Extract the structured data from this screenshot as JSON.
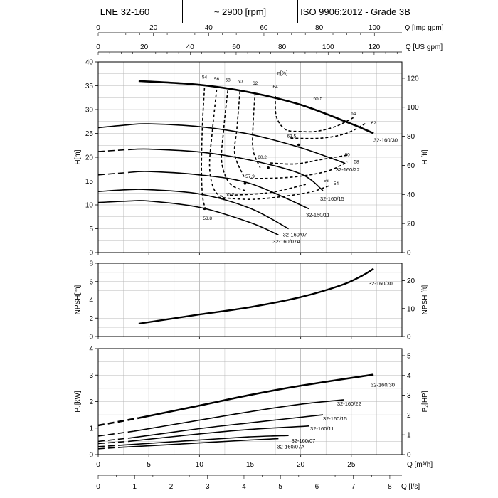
{
  "header": {
    "model": "LNE 32-160",
    "speed": "~ 2900 [rpm]",
    "standard": "ISO 9906:2012 - Grade 3B"
  },
  "chart_data": [
    {
      "type": "line",
      "name": "head",
      "title": "",
      "xlabel": "Q [m³/h]",
      "ylabel": "H[m]",
      "ylabel_right": "H [ft]",
      "xlim": [
        0,
        30
      ],
      "ylim": [
        0,
        40
      ],
      "ylim_right": [
        0,
        131.2
      ],
      "x_ticks": [
        0,
        5,
        10,
        15,
        20,
        25
      ],
      "y_ticks": [
        0,
        5,
        10,
        15,
        20,
        25,
        30,
        35,
        40
      ],
      "y_ticks_right": [
        0,
        20,
        40,
        60,
        80,
        100,
        120
      ],
      "top_axes": [
        {
          "label": "Q [Imp gpm]",
          "ticks": [
            0,
            20,
            40,
            60,
            80,
            100
          ],
          "per_m3h": 3.666
        },
        {
          "label": "Q [US gpm]",
          "ticks": [
            0,
            20,
            40,
            60,
            80,
            100,
            120
          ],
          "per_m3h": 4.403
        }
      ],
      "grid": true,
      "series": [
        {
          "name": "32-160/30",
          "x": [
            4,
            10,
            15,
            20,
            25,
            27.2
          ],
          "y": [
            36,
            35.2,
            33.6,
            31,
            27,
            25
          ],
          "dash_to": 4
        },
        {
          "name": "32-160/22",
          "x": [
            0,
            3,
            5,
            10,
            15,
            20,
            24.3
          ],
          "y": [
            26.2,
            26.8,
            27,
            26.4,
            24.8,
            22,
            18.8
          ],
          "dash_to": 3.5
        },
        {
          "name": "32-160/15",
          "x": [
            0,
            3,
            5,
            10,
            15,
            20,
            22.2
          ],
          "y": [
            21.2,
            21.6,
            21.7,
            21.1,
            19.4,
            16.5,
            13
          ],
          "dash_to": 3
        },
        {
          "name": "32-160/11",
          "x": [
            0,
            3,
            5,
            10,
            15,
            20.8
          ],
          "y": [
            16.3,
            16.8,
            17,
            16.3,
            14.5,
            9.2
          ],
          "dash_to": 3
        },
        {
          "name": "32-160/07",
          "x": [
            0,
            3,
            5,
            10,
            15,
            18.8
          ],
          "y": [
            12.8,
            13.2,
            13.2,
            12.3,
            9.3,
            5
          ],
          "dash_to": 2.5
        },
        {
          "name": "32-160/07A",
          "x": [
            0,
            3,
            5,
            10,
            15,
            17.8
          ],
          "y": [
            10.5,
            10.8,
            10.8,
            9.5,
            6.3,
            3.7
          ],
          "dash_to": 2.5
        }
      ],
      "efficiency_label": "η[%]",
      "efficiency_contours": [
        {
          "label": "54",
          "x": [
            10.5,
            10.3,
            10.2,
            10.3,
            10.6
          ],
          "y": [
            34.5,
            27,
            18,
            12,
            9
          ]
        },
        {
          "label": "56",
          "x": [
            11.7,
            11.3,
            11.0,
            11.5,
            12.5
          ],
          "y": [
            34.2,
            26,
            18,
            13,
            11.6
          ]
        },
        {
          "label": "58",
          "x": [
            12.8,
            12.4,
            12.2,
            13.0,
            14.5
          ],
          "y": [
            34.0,
            26,
            19,
            14.5,
            13
          ]
        },
        {
          "label": "60",
          "x": [
            14,
            13.7,
            13.5,
            14.5
          ],
          "y": [
            33.8,
            26,
            20.5,
            15.5
          ]
        },
        {
          "label": "62",
          "x": [
            15.5,
            15.3,
            15.3,
            16.0
          ],
          "y": [
            33.5,
            27,
            21.5,
            17.8
          ]
        },
        {
          "label": "64",
          "x": [
            17.5,
            17.6,
            18.5,
            19.8
          ],
          "y": [
            32.8,
            28.5,
            25.8,
            25.4
          ]
        },
        {
          "label": "64",
          "x": [
            19.8,
            21.5,
            23.5,
            25.2
          ],
          "y": [
            25.4,
            25.4,
            26.5,
            28.3
          ]
        },
        {
          "label": "62",
          "x": [
            19.0,
            22.0,
            24.5,
            26.5
          ],
          "y": [
            24.0,
            24.0,
            25.0,
            27.2
          ]
        },
        {
          "label": "60",
          "x": [
            17.0,
            19.5,
            22.0,
            24.8
          ],
          "y": [
            18.8,
            18.6,
            19.5,
            20.5
          ]
        },
        {
          "label": "58",
          "x": [
            15.0,
            19.0,
            22.5,
            24.6
          ],
          "y": [
            15.5,
            15.8,
            17.0,
            19.0
          ]
        },
        {
          "label": "56",
          "x": [
            13.0,
            17.0,
            20.5
          ],
          "y": [
            12.0,
            12.6,
            14.3
          ]
        },
        {
          "label": "54",
          "x": [
            11.8,
            15.5,
            20.5,
            22.8
          ],
          "y": [
            11.6,
            11.2,
            12.5,
            14.0
          ]
        }
      ],
      "efficiency_labels": [
        {
          "text": "54",
          "x": 10.5,
          "y": 36.5
        },
        {
          "text": "56",
          "x": 11.7,
          "y": 36.1
        },
        {
          "text": "58",
          "x": 12.8,
          "y": 35.9
        },
        {
          "text": "60",
          "x": 14.0,
          "y": 35.6
        },
        {
          "text": "62",
          "x": 15.5,
          "y": 35.2
        },
        {
          "text": "64",
          "x": 17.5,
          "y": 34.5
        },
        {
          "text": "65.5",
          "x": 21.7,
          "y": 32.0
        },
        {
          "text": "64",
          "x": 25.2,
          "y": 28.9
        },
        {
          "text": "62",
          "x": 27.2,
          "y": 26.9
        },
        {
          "text": "63.5",
          "x": 19.1,
          "y": 24.1
        },
        {
          "text": "60",
          "x": 24.6,
          "y": 20.2
        },
        {
          "text": "60.2",
          "x": 16.2,
          "y": 19.7
        },
        {
          "text": "58",
          "x": 25.5,
          "y": 18.7
        },
        {
          "text": "57.9",
          "x": 15.0,
          "y": 15.7
        },
        {
          "text": "56",
          "x": 22.5,
          "y": 14.8
        },
        {
          "text": "54",
          "x": 23.5,
          "y": 14.2
        },
        {
          "text": "55.2",
          "x": 13.0,
          "y": 11.9
        },
        {
          "text": "53.8",
          "x": 10.8,
          "y": 6.9
        }
      ],
      "bep_points": [
        {
          "x": 19.8,
          "y": 22.6
        },
        {
          "x": 16.8,
          "y": 17.8
        },
        {
          "x": 14.5,
          "y": 14.5
        },
        {
          "x": 12.4,
          "y": 11.3
        },
        {
          "x": 10.5,
          "y": 9.2
        }
      ]
    },
    {
      "type": "line",
      "name": "npsh",
      "title": "",
      "ylabel": "NPSH[m]",
      "ylabel_right": "NPSH [ft]",
      "xlim": [
        0,
        30
      ],
      "ylim": [
        0,
        8
      ],
      "ylim_right": [
        0,
        26.25
      ],
      "y_ticks": [
        0,
        2,
        4,
        6,
        8
      ],
      "y_ticks_right": [
        0,
        10,
        20
      ],
      "grid": true,
      "series": [
        {
          "name": "32-160/30",
          "x": [
            4,
            10,
            15,
            20,
            24,
            26,
            27.2
          ],
          "y": [
            1.4,
            2.4,
            3.2,
            4.3,
            5.6,
            6.6,
            7.4
          ]
        }
      ]
    },
    {
      "type": "line",
      "name": "power",
      "title": "",
      "ylabel": "P₂[kW]",
      "ylabel_right": "P₂[HP]",
      "xlim": [
        0,
        30
      ],
      "ylim": [
        0,
        4
      ],
      "ylim_right": [
        0,
        5.36
      ],
      "y_ticks": [
        0,
        1,
        2,
        3,
        4
      ],
      "y_ticks_right": [
        0,
        1,
        2,
        3,
        4,
        5
      ],
      "x_ticks": [
        0,
        5,
        10,
        15,
        20,
        25
      ],
      "xlabel": "Q [m³/h]",
      "bottom_axis": {
        "label": "Q [l/s]",
        "ticks": [
          0,
          1,
          2,
          3,
          4,
          5,
          6,
          7,
          8
        ],
        "m3h_per_unit": 3.6
      },
      "grid": true,
      "series": [
        {
          "name": "32-160/30",
          "x": [
            0,
            4,
            10,
            15,
            20,
            27.2
          ],
          "y": [
            1.1,
            1.38,
            1.85,
            2.25,
            2.6,
            3.02
          ],
          "dash_to": 4
        },
        {
          "name": "32-160/22",
          "x": [
            0,
            3.5,
            10,
            15,
            20,
            24.3
          ],
          "y": [
            0.7,
            0.88,
            1.3,
            1.62,
            1.9,
            2.07
          ],
          "dash_to": 3.5
        },
        {
          "name": "32-160/15",
          "x": [
            0,
            3,
            10,
            15,
            22.2
          ],
          "y": [
            0.5,
            0.62,
            0.98,
            1.2,
            1.5
          ],
          "dash_to": 3
        },
        {
          "name": "32-160/11",
          "x": [
            0,
            3,
            10,
            15,
            20.8
          ],
          "y": [
            0.42,
            0.5,
            0.78,
            0.95,
            1.08
          ],
          "dash_to": 3
        },
        {
          "name": "32-160/07",
          "x": [
            0,
            2.5,
            10,
            15,
            18.8
          ],
          "y": [
            0.3,
            0.36,
            0.55,
            0.67,
            0.72
          ],
          "dash_to": 2.5
        },
        {
          "name": "32-160/07A",
          "x": [
            0,
            2.5,
            10,
            15,
            17.8
          ],
          "y": [
            0.22,
            0.28,
            0.44,
            0.55,
            0.6
          ],
          "dash_to": 2.5
        }
      ]
    }
  ]
}
